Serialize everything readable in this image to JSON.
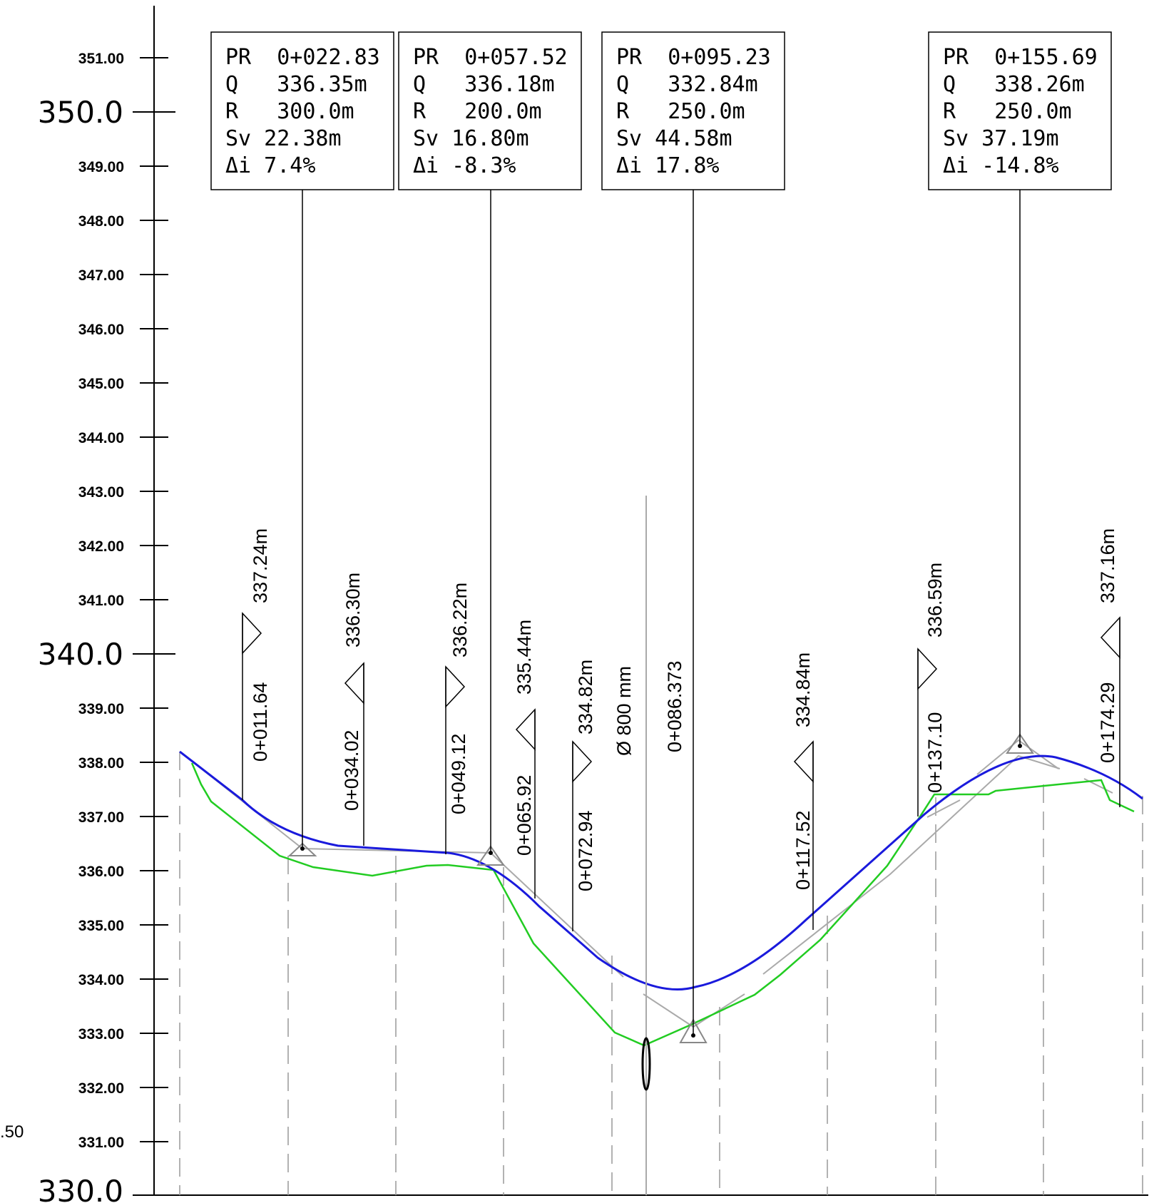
{
  "axis": {
    "minor_ticks": [
      "351.00",
      "349.00",
      "348.00",
      "347.00",
      "346.00",
      "345.00",
      "344.00",
      "343.00",
      "342.00",
      "341.00",
      "339.00",
      "338.00",
      "337.00",
      "336.00",
      "335.00",
      "334.00",
      "333.00",
      "332.00",
      "331.00"
    ],
    "major_ticks": [
      "350.0",
      "340.0",
      "330.0"
    ],
    "left_edge_label": ".50"
  },
  "curve_boxes": [
    {
      "pr": "PR  0+022.83",
      "q": "Q   336.35m",
      "r": "R   300.0m",
      "sv": "Sv 22.38m",
      "di": "Δi 7.4%"
    },
    {
      "pr": "PR  0+057.52",
      "q": "Q   336.18m",
      "r": "R   200.0m",
      "sv": "Sv 16.80m",
      "di": "Δi -8.3%"
    },
    {
      "pr": "PR  0+095.23",
      "q": "Q   332.84m",
      "r": "R   250.0m",
      "sv": "Sv 44.58m",
      "di": "Δi 17.8%"
    },
    {
      "pr": "PR  0+155.69",
      "q": "Q   338.26m",
      "r": "R   250.0m",
      "sv": "Sv 37.19m",
      "di": "Δi -14.8%"
    }
  ],
  "stations": [
    {
      "station": "0+011.64",
      "elevation": "337.24m"
    },
    {
      "station": "0+034.02",
      "elevation": "336.30m"
    },
    {
      "station": "0+049.12",
      "elevation": "336.22m"
    },
    {
      "station": "0+065.92",
      "elevation": "335.44m"
    },
    {
      "station": "0+072.94",
      "elevation": "334.82m"
    },
    {
      "station": "0+117.52",
      "elevation": "334.84m"
    },
    {
      "station": "0+137.10",
      "elevation": "336.59m"
    },
    {
      "station": "0+174.29",
      "elevation": "337.16m"
    }
  ],
  "pipe": {
    "diameter": "Ø 800 mm",
    "station": "0+086.373"
  },
  "colors": {
    "terrain": "#22cc22",
    "grade": "#1a1adc",
    "tangent": "#aaaaaa",
    "text": "#000000"
  }
}
